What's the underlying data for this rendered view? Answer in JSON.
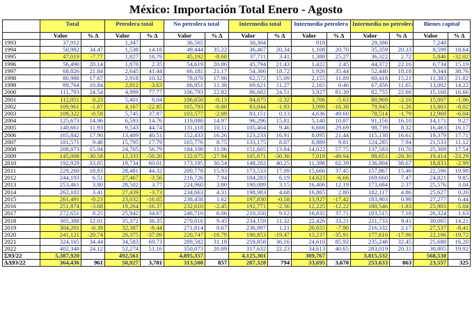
{
  "title": "México: Importación Total Enero - Agosto",
  "groups": [
    "Total",
    "Petrolera total",
    "No petrolera total",
    "Intermedia total",
    "Intermedia petrolera",
    "Intermedia no petrolera",
    "Bienes capital"
  ],
  "subheaders": {
    "year": "",
    "valor": "Valor",
    "pct": "% Δ"
  },
  "rows": [
    {
      "y": "1993",
      "v": [
        "37,912",
        "",
        "1,347",
        "",
        "36,565",
        "",
        "30,304",
        "",
        "918",
        "",
        "29,386",
        "",
        "7,248",
        ""
      ]
    },
    {
      "y": "1994",
      "v": [
        "50,982",
        "34.47",
        "1,538",
        "14.18",
        "49,444",
        "35.22",
        "36,467",
        "20.34",
        "1,108",
        "20.70",
        "35,359",
        "20.33",
        "8,599",
        "18.64"
      ]
    },
    {
      "y": "1995",
      "v": [
        "47,019",
        "-7.77",
        "1,827",
        "18.79",
        "45,192",
        "-8.60",
        "37,711",
        "3.41",
        "1,388",
        "25.27",
        "36,322",
        "2.72",
        "5,846",
        "-32.02"
      ]
    },
    {
      "y": "1996",
      "v": [
        "56,490",
        "20.14",
        "1,870",
        "2.35",
        "54,619",
        "20.86",
        "45,794",
        "21.43",
        "1,422",
        "2.45",
        "44,372",
        "22.16",
        "6,734",
        "15.19"
      ]
    },
    {
      "y": "1997",
      "v": [
        "68,826",
        "21.84",
        "2,645",
        "41.44",
        "66,181",
        "21.17",
        "54,366",
        "18.72",
        "1,926",
        "35.44",
        "52,440",
        "18.18",
        "9,344",
        "38.76"
      ]
    },
    {
      "y": "1998",
      "v": [
        "80,988",
        "17.67",
        "2,918",
        "10.32",
        "78,070",
        "17.96",
        "62,572",
        "15.09",
        "2,155",
        "11.89",
        "60,418",
        "15.21",
        "11,383",
        "21.82"
      ]
    },
    {
      "y": "1999",
      "v": [
        "89,764",
        "10.84",
        "2,812",
        "-3.63",
        "86,951",
        "11.38",
        "69,621",
        "11.27",
        "2,165",
        "0.46",
        "67,456",
        "11.65",
        "13,002",
        "14.22"
      ]
    },
    {
      "y": "2000",
      "v": [
        "111,793",
        "24.54",
        "4,999",
        "77.77",
        "106,793",
        "22.82",
        "86,682",
        "24.51",
        "3,927",
        "81.39",
        "82,755",
        "22.68",
        "15,168",
        "16.66"
      ]
    },
    {
      "y": "2001",
      "v": [
        "112,051",
        "0.23",
        "5,401",
        "8.04",
        "106,650",
        "-0.13",
        "84,675",
        "-2.32",
        "3,706",
        "-5.63",
        "80,969",
        "-2.16",
        "15,007",
        "-1.06"
      ]
    },
    {
      "y": "2002",
      "v": [
        "109,961",
        "-1.87",
        "4,167",
        "-22.85",
        "105,793",
        "-0.80",
        "83,044",
        "-1.93",
        "3,099",
        "-16.38",
        "79,945",
        "-1.26",
        "13,803",
        "-8.02"
      ]
    },
    {
      "y": "2003",
      "v": [
        "109,322",
        "-0.58",
        "5,745",
        "37.87",
        "103,577",
        "-2.09",
        "83,151",
        "0.13",
        "4,636",
        "49.60",
        "78,514",
        "-1.79",
        "12,969",
        "-6.04"
      ]
    },
    {
      "y": "2004",
      "v": [
        "125,673",
        "14.96",
        "6,593",
        "14.76",
        "119,080",
        "14.97",
        "96,296",
        "15.81",
        "5,140",
        "10.87",
        "91,156",
        "16.10",
        "14,171",
        "9.27"
      ]
    },
    {
      "y": "2005",
      "v": [
        "140,661",
        "11.93",
        "9,543",
        "44.74",
        "131,118",
        "10.11",
        "105,404",
        "9.46",
        "6,666",
        "29.69",
        "98,739",
        "8.32",
        "16,463",
        "16.17"
      ]
    },
    {
      "y": "2006",
      "v": [
        "165,842",
        "17.90",
        "13,409",
        "40.51",
        "152,433",
        "16.26",
        "123,233",
        "16.91",
        "8,095",
        "21.44",
        "115,138",
        "16.61",
        "19,379",
        "17.71"
      ]
    },
    {
      "y": "2007",
      "v": [
        "181,571",
        "9.48",
        "15,795",
        "17.79",
        "165,776",
        "8.75",
        "133,175",
        "8.07",
        "8,889",
        "9.81",
        "124,285",
        "7.94",
        "21,533",
        "11.12"
      ]
    },
    {
      "y": "2008",
      "v": [
        "208,873",
        "15.04",
        "24,765",
        "56.79",
        "184,108",
        "11.06",
        "151,605",
        "13.84",
        "14,022",
        "57.75",
        "137,583",
        "10.70",
        "25,309",
        "17.54"
      ]
    },
    {
      "y": "2009",
      "v": [
        "145,008",
        "-30.58",
        "12,333",
        "-50.20",
        "132,675",
        "-27.94",
        "105,671",
        "-30.30",
        "7,019",
        "-49.94",
        "98,651",
        "-28.30",
        "19,414",
        "-23.29"
      ]
    },
    {
      "y": "2010",
      "v": [
        "192,929",
        "33.05",
        "19,734",
        "60.01",
        "173,195",
        "30.54",
        "148,202",
        "40.25",
        "11,398",
        "62.39",
        "136,804",
        "38.67",
        "18,833",
        "-2.99"
      ]
    },
    {
      "y": "2011",
      "v": [
        "229,260",
        "18.83",
        "28,481",
        "44.32",
        "200,778",
        "15.93",
        "173,533",
        "17.09",
        "15,666",
        "37.45",
        "157,867",
        "15.40",
        "22,596",
        "19.98"
      ]
    },
    {
      "y": "2012",
      "v": [
        "244,193",
        "6.51",
        "27,467",
        "-3.56",
        "216,726",
        "7.94",
        "184,283",
        "6.19",
        "14,623",
        "-6.66",
        "169,660",
        "7.47",
        "24,821",
        "9.85"
      ]
    },
    {
      "y": "2013",
      "v": [
        "253,461",
        "3.80",
        "28,502",
        "3.77",
        "224,960",
        "3.80",
        "190,089",
        "3.15",
        "16,406",
        "12.19",
        "173,684",
        "2.37",
        "25,576",
        "3.04"
      ]
    },
    {
      "y": "2014",
      "v": [
        "262,102",
        "3.41",
        "27,439",
        "-3.73",
        "234,663",
        "4.31",
        "198,983",
        "4.68",
        "16,865",
        "2.80",
        "182,117",
        "4.86",
        "25,627",
        "0.20"
      ]
    },
    {
      "y": "2015",
      "v": [
        "261,491",
        "-0.23",
        "23,032",
        "-16.05",
        "238,458",
        "1.62",
        "197,830",
        "-0.58",
        "13,927",
        "-17.42",
        "183,903",
        "0.98",
        "27,277",
        "6.44"
      ]
    },
    {
      "y": "2016",
      "v": [
        "251,874",
        "-3.68",
        "19,264",
        "-16.37",
        "232,610",
        "-2.45",
        "192,771",
        "-2.56",
        "12,225",
        "-12.22",
        "180,546",
        "-1.83",
        "25,903",
        "-5.04"
      ]
    },
    {
      "y": "2017",
      "v": [
        "272,651",
        "8.25",
        "25,942",
        "34.67",
        "246,710",
        "6.06",
        "210,350",
        "9.12",
        "16,835",
        "37.71",
        "193,515",
        "7.18",
        "26,324",
        "1.63"
      ]
    },
    {
      "y": "2018",
      "v": [
        "305,388",
        "12.01",
        "35,372",
        "36.35",
        "270,016",
        "9.45",
        "234,159",
        "11.32",
        "22,426",
        "33.21",
        "211,733",
        "9.41",
        "30,065",
        "14.21"
      ]
    },
    {
      "y": "2019",
      "v": [
        "304,201",
        "-0.39",
        "32,387",
        "-8.44",
        "271,814",
        "0.67",
        "236,987",
        "1.21",
        "20,655",
        "-7.90",
        "216,332",
        "2.17",
        "27,537",
        "-8.41"
      ]
    },
    {
      "y": "2020",
      "v": [
        "241,121",
        "-20.74",
        "20,375",
        "-37.09",
        "220,747",
        "-18.79",
        "190,853",
        "-19.47",
        "13,237",
        "-35.91",
        "177,616",
        "-17.90",
        "22,106",
        "-19.72"
      ]
    },
    {
      "y": "2021",
      "v": [
        "324,165",
        "34.44",
        "34,583",
        "69.73",
        "289,582",
        "31.18",
        "259,858",
        "36.16",
        "24,610",
        "85.92",
        "235,248",
        "32.45",
        "25,688",
        "16.20"
      ]
    },
    {
      "y": "2022",
      "v": [
        "402,348",
        "24.12",
        "52,274",
        "51.16",
        "350,073",
        "20.89",
        "317,632",
        "22.23",
        "34,613",
        "40.65",
        "283,019",
        "20.31",
        "30,805",
        "19.92"
      ]
    },
    {
      "y": "Σ93/22",
      "v": [
        "5,387,920",
        "",
        "492,561",
        "",
        "4,895,357",
        "",
        "4,125,301",
        "",
        "309,767",
        "",
        "3,815,532",
        "",
        "568,530",
        ""
      ]
    },
    {
      "y": "ΔΔ93/22",
      "v": [
        "364,436",
        "961",
        "50,927",
        "3,781",
        "313,508",
        "857",
        "287,328",
        "794",
        "33,695",
        "3,670",
        "253,633",
        "863",
        "23,557",
        "325"
      ]
    }
  ],
  "highlight_color": "#ffff66",
  "text_color": "#1f2f8a"
}
